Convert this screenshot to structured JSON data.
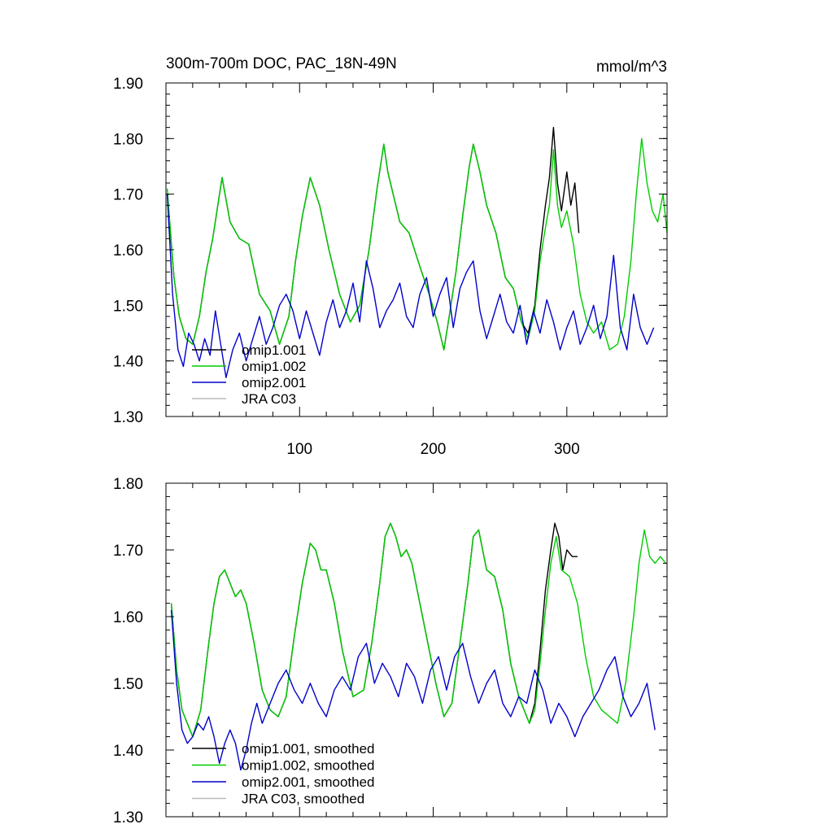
{
  "chart_data": [
    {
      "type": "line",
      "title": "300m-700m DOC, PAC_18N-49N",
      "units": "mmol/m^3",
      "xlim": [
        0,
        375
      ],
      "ylim": [
        1.3,
        1.9
      ],
      "xticks": [
        100,
        200,
        300
      ],
      "xtick_labels": [
        "100",
        "200",
        "300"
      ],
      "yticks": [
        1.3,
        1.4,
        1.5,
        1.6,
        1.7,
        1.8,
        1.9
      ],
      "ytick_labels": [
        "1.30",
        "1.40",
        "1.50",
        "1.60",
        "1.70",
        "1.80",
        "1.90"
      ],
      "legend_position": "bottom-left",
      "series": [
        {
          "name": "omip1.001",
          "color": "#000000",
          "x": [
            1,
            6,
            10,
            15,
            20,
            25,
            30,
            35,
            42,
            48,
            55,
            62,
            70,
            78,
            85,
            92,
            97,
            102,
            108,
            115,
            122,
            130,
            138,
            145,
            152,
            158,
            163,
            166,
            170,
            175,
            182,
            190,
            197,
            203,
            208,
            212,
            217,
            222,
            227,
            230,
            235,
            240,
            247,
            254,
            260,
            266,
            271,
            276,
            280,
            284,
            287,
            290,
            293,
            296,
            300,
            303,
            306,
            309
          ],
          "values": [
            1.7,
            1.55,
            1.48,
            1.44,
            1.43,
            1.48,
            1.56,
            1.62,
            1.73,
            1.65,
            1.62,
            1.61,
            1.52,
            1.49,
            1.43,
            1.48,
            1.58,
            1.66,
            1.73,
            1.68,
            1.6,
            1.52,
            1.47,
            1.5,
            1.6,
            1.71,
            1.79,
            1.74,
            1.7,
            1.65,
            1.63,
            1.57,
            1.52,
            1.47,
            1.42,
            1.48,
            1.56,
            1.66,
            1.75,
            1.79,
            1.74,
            1.68,
            1.63,
            1.55,
            1.53,
            1.47,
            1.45,
            1.5,
            1.6,
            1.68,
            1.73,
            1.82,
            1.72,
            1.67,
            1.74,
            1.68,
            1.72,
            1.63
          ]
        },
        {
          "name": "omip1.002",
          "color": "#00cc00",
          "x": [
            1,
            6,
            10,
            15,
            20,
            25,
            30,
            35,
            42,
            48,
            55,
            62,
            70,
            78,
            85,
            92,
            97,
            102,
            108,
            115,
            122,
            130,
            138,
            145,
            152,
            158,
            163,
            166,
            170,
            175,
            182,
            190,
            197,
            203,
            208,
            212,
            217,
            222,
            227,
            230,
            235,
            240,
            247,
            254,
            260,
            266,
            271,
            276,
            280,
            284,
            287,
            290,
            293,
            296,
            300,
            305,
            310,
            315,
            320,
            326,
            332,
            338,
            343,
            348,
            352,
            356,
            360,
            364,
            368,
            372,
            375
          ],
          "values": [
            1.71,
            1.55,
            1.48,
            1.44,
            1.43,
            1.48,
            1.56,
            1.62,
            1.73,
            1.65,
            1.62,
            1.61,
            1.52,
            1.49,
            1.43,
            1.48,
            1.58,
            1.66,
            1.73,
            1.68,
            1.6,
            1.52,
            1.47,
            1.5,
            1.6,
            1.71,
            1.79,
            1.74,
            1.7,
            1.65,
            1.63,
            1.57,
            1.52,
            1.47,
            1.42,
            1.48,
            1.56,
            1.66,
            1.75,
            1.79,
            1.74,
            1.68,
            1.63,
            1.55,
            1.53,
            1.47,
            1.44,
            1.49,
            1.58,
            1.64,
            1.68,
            1.78,
            1.68,
            1.64,
            1.67,
            1.61,
            1.52,
            1.47,
            1.45,
            1.47,
            1.42,
            1.43,
            1.48,
            1.58,
            1.7,
            1.8,
            1.72,
            1.67,
            1.65,
            1.7,
            1.63
          ]
        },
        {
          "name": "omip2.001",
          "color": "#0000cc",
          "x": [
            1,
            5,
            9,
            13,
            17,
            21,
            25,
            29,
            33,
            37,
            41,
            45,
            50,
            55,
            60,
            65,
            70,
            75,
            80,
            85,
            90,
            95,
            100,
            105,
            110,
            115,
            120,
            125,
            130,
            135,
            140,
            145,
            150,
            155,
            160,
            165,
            170,
            175,
            180,
            185,
            190,
            195,
            200,
            205,
            210,
            215,
            220,
            225,
            230,
            235,
            240,
            245,
            250,
            255,
            260,
            265,
            270,
            275,
            280,
            285,
            290,
            295,
            300,
            305,
            310,
            315,
            320,
            325,
            330,
            335,
            340,
            345,
            350,
            355,
            360,
            365
          ],
          "values": [
            1.7,
            1.52,
            1.42,
            1.39,
            1.45,
            1.43,
            1.4,
            1.44,
            1.41,
            1.49,
            1.43,
            1.37,
            1.42,
            1.45,
            1.4,
            1.44,
            1.48,
            1.43,
            1.46,
            1.5,
            1.52,
            1.49,
            1.44,
            1.49,
            1.45,
            1.41,
            1.47,
            1.51,
            1.46,
            1.49,
            1.54,
            1.47,
            1.58,
            1.53,
            1.46,
            1.49,
            1.51,
            1.54,
            1.48,
            1.46,
            1.52,
            1.55,
            1.48,
            1.52,
            1.55,
            1.46,
            1.53,
            1.56,
            1.58,
            1.49,
            1.44,
            1.48,
            1.52,
            1.47,
            1.45,
            1.5,
            1.43,
            1.49,
            1.45,
            1.51,
            1.47,
            1.42,
            1.46,
            1.49,
            1.43,
            1.46,
            1.5,
            1.44,
            1.48,
            1.59,
            1.46,
            1.42,
            1.52,
            1.46,
            1.43,
            1.46
          ]
        }
      ],
      "legend": [
        "omip1.001",
        "omip1.002",
        "omip2.001",
        "JRA C03"
      ]
    },
    {
      "type": "line",
      "xlim": [
        0,
        375
      ],
      "ylim": [
        1.3,
        1.8
      ],
      "yticks": [
        1.3,
        1.4,
        1.5,
        1.6,
        1.7,
        1.8
      ],
      "ytick_labels": [
        "1.30",
        "1.40",
        "1.50",
        "1.60",
        "1.70",
        "1.80"
      ],
      "legend_position": "bottom-left",
      "series": [
        {
          "name": "omip1.001, smoothed",
          "color": "#000000",
          "x": [
            4,
            8,
            12,
            16,
            20,
            26,
            32,
            36,
            40,
            44,
            48,
            52,
            56,
            60,
            66,
            72,
            78,
            84,
            90,
            96,
            102,
            108,
            112,
            116,
            120,
            126,
            132,
            140,
            148,
            154,
            160,
            164,
            168,
            172,
            176,
            180,
            184,
            190,
            196,
            202,
            208,
            214,
            220,
            226,
            230,
            234,
            240,
            246,
            252,
            258,
            264,
            268,
            272,
            276,
            280,
            284,
            288,
            291,
            294,
            297,
            300,
            304,
            308
          ],
          "values": [
            1.62,
            1.52,
            1.46,
            1.44,
            1.42,
            1.46,
            1.56,
            1.62,
            1.66,
            1.67,
            1.65,
            1.63,
            1.64,
            1.62,
            1.56,
            1.49,
            1.46,
            1.45,
            1.48,
            1.57,
            1.65,
            1.71,
            1.7,
            1.67,
            1.67,
            1.62,
            1.55,
            1.48,
            1.49,
            1.56,
            1.65,
            1.72,
            1.74,
            1.72,
            1.69,
            1.7,
            1.68,
            1.62,
            1.56,
            1.5,
            1.45,
            1.47,
            1.56,
            1.65,
            1.72,
            1.73,
            1.67,
            1.66,
            1.61,
            1.53,
            1.48,
            1.46,
            1.44,
            1.47,
            1.55,
            1.64,
            1.7,
            1.74,
            1.72,
            1.67,
            1.7,
            1.69,
            1.69
          ]
        },
        {
          "name": "omip1.002, smoothed",
          "color": "#00cc00",
          "x": [
            4,
            8,
            12,
            16,
            20,
            26,
            32,
            36,
            40,
            44,
            48,
            52,
            56,
            60,
            66,
            72,
            78,
            84,
            90,
            96,
            102,
            108,
            112,
            116,
            120,
            126,
            132,
            140,
            148,
            154,
            160,
            164,
            168,
            172,
            176,
            180,
            184,
            190,
            196,
            202,
            208,
            214,
            220,
            226,
            230,
            234,
            240,
            246,
            252,
            258,
            264,
            268,
            272,
            276,
            280,
            284,
            288,
            292,
            296,
            302,
            308,
            314,
            320,
            326,
            332,
            338,
            344,
            350,
            354,
            358,
            362,
            366,
            370,
            374
          ],
          "values": [
            1.62,
            1.52,
            1.46,
            1.44,
            1.42,
            1.46,
            1.56,
            1.62,
            1.66,
            1.67,
            1.65,
            1.63,
            1.64,
            1.62,
            1.56,
            1.49,
            1.46,
            1.45,
            1.48,
            1.57,
            1.65,
            1.71,
            1.7,
            1.67,
            1.67,
            1.62,
            1.55,
            1.48,
            1.49,
            1.56,
            1.65,
            1.72,
            1.74,
            1.72,
            1.69,
            1.7,
            1.68,
            1.62,
            1.56,
            1.5,
            1.45,
            1.47,
            1.56,
            1.65,
            1.72,
            1.73,
            1.67,
            1.66,
            1.61,
            1.53,
            1.48,
            1.46,
            1.44,
            1.46,
            1.53,
            1.61,
            1.68,
            1.72,
            1.67,
            1.66,
            1.62,
            1.54,
            1.48,
            1.46,
            1.45,
            1.44,
            1.5,
            1.6,
            1.68,
            1.73,
            1.69,
            1.68,
            1.69,
            1.68
          ]
        },
        {
          "name": "omip2.001, smoothed",
          "color": "#0000cc",
          "x": [
            4,
            8,
            12,
            16,
            20,
            24,
            28,
            32,
            36,
            40,
            44,
            48,
            52,
            56,
            60,
            64,
            68,
            72,
            78,
            84,
            90,
            96,
            102,
            108,
            114,
            120,
            126,
            132,
            138,
            144,
            150,
            156,
            162,
            168,
            174,
            180,
            186,
            192,
            198,
            204,
            210,
            216,
            222,
            228,
            234,
            240,
            246,
            252,
            258,
            264,
            270,
            276,
            282,
            288,
            294,
            300,
            306,
            312,
            318,
            324,
            330,
            336,
            342,
            348,
            354,
            360,
            366
          ],
          "values": [
            1.61,
            1.5,
            1.43,
            1.41,
            1.42,
            1.44,
            1.43,
            1.45,
            1.42,
            1.38,
            1.41,
            1.43,
            1.41,
            1.37,
            1.4,
            1.44,
            1.47,
            1.44,
            1.47,
            1.5,
            1.52,
            1.49,
            1.47,
            1.5,
            1.47,
            1.45,
            1.49,
            1.51,
            1.49,
            1.54,
            1.56,
            1.5,
            1.53,
            1.51,
            1.48,
            1.53,
            1.51,
            1.47,
            1.52,
            1.54,
            1.49,
            1.54,
            1.56,
            1.51,
            1.47,
            1.5,
            1.52,
            1.47,
            1.45,
            1.48,
            1.47,
            1.52,
            1.49,
            1.44,
            1.47,
            1.45,
            1.42,
            1.45,
            1.47,
            1.49,
            1.52,
            1.54,
            1.48,
            1.45,
            1.47,
            1.5,
            1.43
          ]
        }
      ],
      "legend": [
        "omip1.001, smoothed",
        "omip1.002, smoothed",
        "omip2.001, smoothed",
        "JRA C03, smoothed"
      ]
    }
  ],
  "legend_colors": {
    "omip1.001": "#000000",
    "omip1.002": "#00cc00",
    "omip2.001": "#0000cc",
    "JRA C03": "#bbbbbb"
  }
}
